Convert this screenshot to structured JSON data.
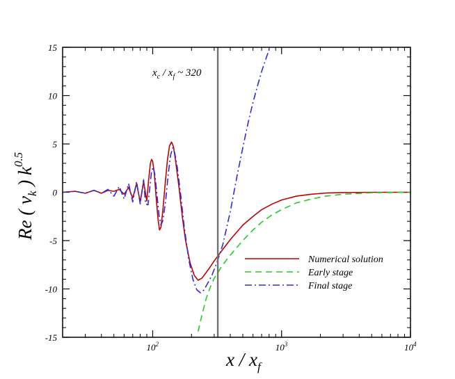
{
  "chart_data": {
    "type": "line",
    "x_scale": "log",
    "xlim": [
      20,
      10000
    ],
    "ylim": [
      -15,
      15
    ],
    "xlabel": {
      "main": "x / x",
      "sub": "f"
    },
    "ylabel": {
      "main": "Re ( v",
      "sub": "k",
      "rest": " ) k",
      "sup": "0.5"
    },
    "x_ticks": [
      {
        "value": 100,
        "base": "10",
        "exp": "2"
      },
      {
        "value": 1000,
        "base": "10",
        "exp": "3"
      },
      {
        "value": 10000,
        "base": "10",
        "exp": "4"
      }
    ],
    "y_ticks": [
      15,
      10,
      5,
      0,
      -5,
      -10,
      -15
    ],
    "grid": false,
    "legend_position": "lower-right",
    "vline": {
      "x": 320,
      "color": "#707070"
    },
    "annotation": {
      "x_main": "x",
      "x_sub": "c",
      "mid": " / x",
      "f_sub": "f",
      "rest": " ~ 320"
    },
    "series": [
      {
        "name": "Numerical solution",
        "color": "#c00000",
        "style": "solid",
        "points": [
          [
            20,
            0
          ],
          [
            25,
            0.1
          ],
          [
            30,
            -0.1
          ],
          [
            35,
            0.2
          ],
          [
            40,
            -0.1
          ],
          [
            45,
            0.2
          ],
          [
            50,
            0.1
          ],
          [
            55,
            0.3
          ],
          [
            60,
            -0.2
          ],
          [
            65,
            0.5
          ],
          [
            70,
            -0.6
          ],
          [
            75,
            0.9
          ],
          [
            80,
            -1.0
          ],
          [
            85,
            1.1
          ],
          [
            90,
            -0.9
          ],
          [
            93,
            1.3
          ],
          [
            96,
            3.0
          ],
          [
            98,
            3.4
          ],
          [
            100,
            3.2
          ],
          [
            103,
            1.9
          ],
          [
            106,
            -0.3
          ],
          [
            110,
            -2.8
          ],
          [
            113,
            -3.9
          ],
          [
            116,
            -3.6
          ],
          [
            120,
            -1.8
          ],
          [
            125,
            0.9
          ],
          [
            130,
            3.3
          ],
          [
            135,
            4.8
          ],
          [
            140,
            5.2
          ],
          [
            145,
            4.7
          ],
          [
            150,
            3.4
          ],
          [
            160,
            0.5
          ],
          [
            170,
            -2.6
          ],
          [
            180,
            -5.0
          ],
          [
            195,
            -7.3
          ],
          [
            210,
            -8.6
          ],
          [
            225,
            -9.1
          ],
          [
            240,
            -8.9
          ],
          [
            260,
            -8.3
          ],
          [
            280,
            -7.7
          ],
          [
            300,
            -7.1
          ],
          [
            320,
            -6.6
          ],
          [
            350,
            -5.9
          ],
          [
            400,
            -4.9
          ],
          [
            450,
            -4.1
          ],
          [
            500,
            -3.4
          ],
          [
            600,
            -2.5
          ],
          [
            700,
            -1.8
          ],
          [
            850,
            -1.2
          ],
          [
            1000,
            -0.8
          ],
          [
            1300,
            -0.4
          ],
          [
            1700,
            -0.2
          ],
          [
            2200,
            -0.08
          ],
          [
            3000,
            -0.03
          ],
          [
            5000,
            0
          ],
          [
            10000,
            0
          ]
        ]
      },
      {
        "name": "Early stage",
        "color": "#22cc22",
        "style": "dashed",
        "points": [
          [
            225,
            -14.4
          ],
          [
            240,
            -12.8
          ],
          [
            260,
            -11.0
          ],
          [
            280,
            -9.8
          ],
          [
            300,
            -8.9
          ],
          [
            320,
            -8.3
          ],
          [
            350,
            -7.5
          ],
          [
            400,
            -6.5
          ],
          [
            450,
            -5.7
          ],
          [
            500,
            -5.0
          ],
          [
            600,
            -3.9
          ],
          [
            700,
            -3.1
          ],
          [
            850,
            -2.3
          ],
          [
            1000,
            -1.8
          ],
          [
            1300,
            -1.1
          ],
          [
            1700,
            -0.7
          ],
          [
            2200,
            -0.4
          ],
          [
            3000,
            -0.2
          ],
          [
            5000,
            -0.05
          ],
          [
            10000,
            0
          ]
        ]
      },
      {
        "name": "Final stage",
        "color": "#2a2ae0",
        "style": "dashdot",
        "points": [
          [
            20,
            0
          ],
          [
            25,
            0.1
          ],
          [
            30,
            -0.1
          ],
          [
            35,
            0.2
          ],
          [
            40,
            -0.1
          ],
          [
            45,
            0.3
          ],
          [
            50,
            -0.4
          ],
          [
            55,
            0.6
          ],
          [
            60,
            -0.7
          ],
          [
            65,
            0.9
          ],
          [
            70,
            -1.0
          ],
          [
            75,
            1.1
          ],
          [
            80,
            -1.2
          ],
          [
            85,
            1.3
          ],
          [
            88,
            -1.2
          ],
          [
            92,
            -1.3
          ],
          [
            95,
            0.5
          ],
          [
            98,
            2.2
          ],
          [
            101,
            2.6
          ],
          [
            104,
            1.8
          ],
          [
            108,
            -0.3
          ],
          [
            112,
            -2.4
          ],
          [
            116,
            -3.4
          ],
          [
            120,
            -2.9
          ],
          [
            126,
            -0.9
          ],
          [
            132,
            1.9
          ],
          [
            138,
            3.9
          ],
          [
            143,
            4.6
          ],
          [
            148,
            4.1
          ],
          [
            155,
            2.6
          ],
          [
            165,
            -0.3
          ],
          [
            175,
            -3.4
          ],
          [
            190,
            -6.9
          ],
          [
            205,
            -9.0
          ],
          [
            220,
            -10.1
          ],
          [
            235,
            -10.4
          ],
          [
            250,
            -10.1
          ],
          [
            270,
            -9.3
          ],
          [
            290,
            -8.5
          ],
          [
            320,
            -7.0
          ],
          [
            350,
            -5.4
          ],
          [
            400,
            -2.0
          ],
          [
            450,
            1.6
          ],
          [
            500,
            4.6
          ],
          [
            550,
            7.2
          ],
          [
            600,
            9.3
          ],
          [
            650,
            11.0
          ],
          [
            700,
            12.5
          ],
          [
            760,
            13.9
          ],
          [
            810,
            15.0
          ]
        ]
      }
    ]
  }
}
